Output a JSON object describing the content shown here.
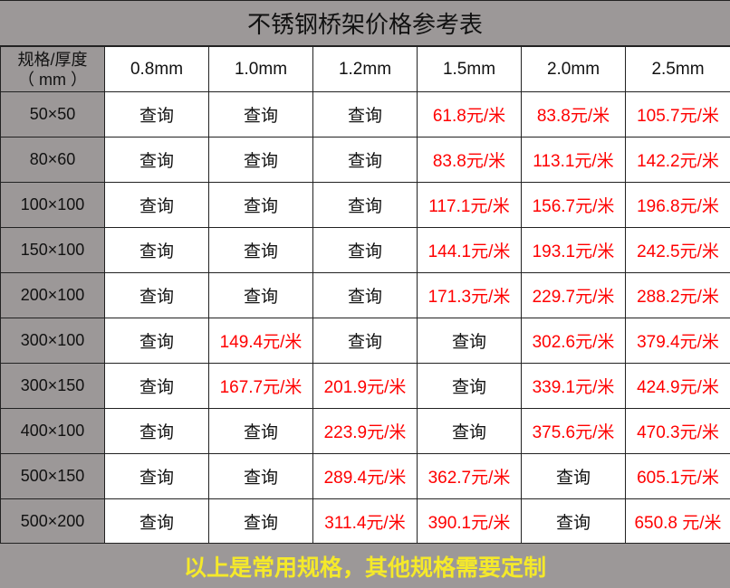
{
  "title": "不锈钢桥架价格参考表",
  "header": {
    "corner_line1": "规格/厚度",
    "corner_line2": "（ mm ）",
    "thicknesses": [
      "0.8mm",
      "1.0mm",
      "1.2mm",
      "1.5mm",
      "2.0mm",
      "2.5mm"
    ]
  },
  "rows": [
    {
      "spec": "50×50",
      "cells": [
        "查询",
        "查询",
        "查询",
        "61.8元/米",
        "83.8元/米",
        "105.7元/米"
      ]
    },
    {
      "spec": "80×60",
      "cells": [
        "查询",
        "查询",
        "查询",
        "83.8元/米",
        "113.1元/米",
        "142.2元/米"
      ]
    },
    {
      "spec": "100×100",
      "cells": [
        "查询",
        "查询",
        "查询",
        "117.1元/米",
        "156.7元/米",
        "196.8元/米"
      ]
    },
    {
      "spec": "150×100",
      "cells": [
        "查询",
        "查询",
        "查询",
        "144.1元/米",
        "193.1元/米",
        "242.5元/米"
      ]
    },
    {
      "spec": "200×100",
      "cells": [
        "查询",
        "查询",
        "查询",
        "171.3元/米",
        "229.7元/米",
        "288.2元/米"
      ]
    },
    {
      "spec": "300×100",
      "cells": [
        "查询",
        "149.4元/米",
        "查询",
        "查询",
        "302.6元/米",
        "379.4元/米"
      ]
    },
    {
      "spec": "300×150",
      "cells": [
        "查询",
        "167.7元/米",
        "201.9元/米",
        "查询",
        "339.1元/米",
        "424.9元/米"
      ]
    },
    {
      "spec": "400×100",
      "cells": [
        "查询",
        "查询",
        "223.9元/米",
        "查询",
        "375.6元/米",
        "470.3元/米"
      ]
    },
    {
      "spec": "500×150",
      "cells": [
        "查询",
        "查询",
        "289.4元/米",
        "362.7元/米",
        "查询",
        "605.1元/米"
      ]
    },
    {
      "spec": "500×200",
      "cells": [
        "查询",
        "查询",
        "311.4元/米",
        "390.1元/米",
        "查询",
        "650.8 元/米"
      ]
    }
  ],
  "footer": "以上是常用规格，其他规格需要定制",
  "colors": {
    "header_gray": "#9c9898",
    "price_red": "#ff0000",
    "footer_yellow": "#f5e92a"
  }
}
